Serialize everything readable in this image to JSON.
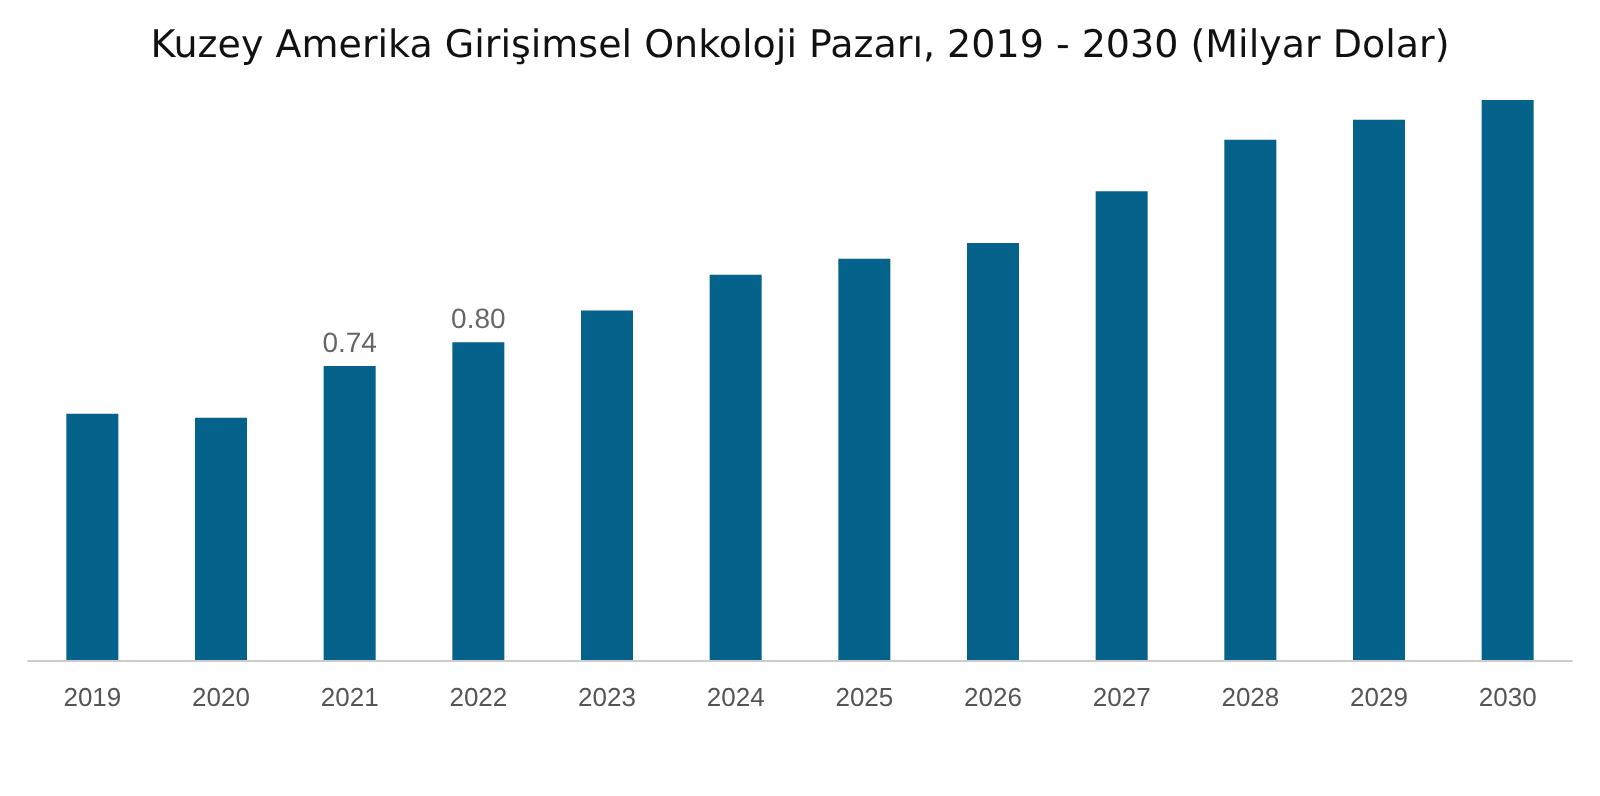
{
  "chart_data": {
    "type": "bar",
    "title": "Kuzey Amerika Girişimsel Onkoloji Pazarı, 2019 - 2030 (Milyar Dolar)",
    "categories": [
      "2019",
      "2020",
      "2021",
      "2022",
      "2023",
      "2024",
      "2025",
      "2026",
      "2027",
      "2028",
      "2029",
      "2030"
    ],
    "values": [
      0.62,
      0.61,
      0.74,
      0.8,
      0.88,
      0.97,
      1.01,
      1.05,
      1.18,
      1.31,
      1.36,
      1.41
    ],
    "value_labels": [
      null,
      null,
      "0.74",
      "0.80",
      null,
      null,
      null,
      null,
      null,
      null,
      null,
      null
    ],
    "color": "#05628a"
  }
}
